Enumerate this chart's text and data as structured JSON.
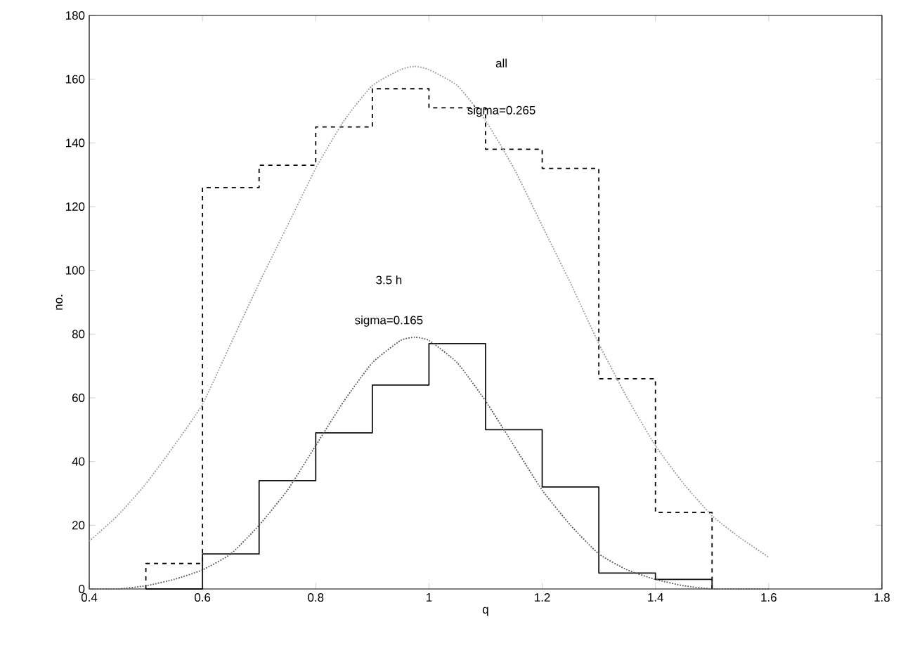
{
  "chart_data": {
    "type": "histogram",
    "xlabel": "q",
    "ylabel": "no.",
    "xlim": [
      0.4,
      1.8
    ],
    "ylim": [
      0,
      180
    ],
    "xticks": [
      0.4,
      0.6,
      0.8,
      1,
      1.2,
      1.4,
      1.6,
      1.8
    ],
    "yticks": [
      0,
      20,
      40,
      60,
      80,
      100,
      120,
      140,
      160,
      180
    ],
    "grid": false,
    "bins": [
      0.5,
      0.6,
      0.7,
      0.8,
      0.9,
      1.0,
      1.1,
      1.2,
      1.3,
      1.4,
      1.5
    ],
    "series": [
      {
        "color": "#000000",
        "line_style": "dashed",
        "values": [
          8,
          126,
          133,
          145,
          157,
          151,
          138,
          132,
          66,
          24
        ]
      },
      {
        "color": "#111111",
        "line_style": "solid",
        "values": [
          0,
          11,
          34,
          49,
          64,
          77,
          50,
          32,
          5,
          3
        ]
      },
      {
        "type": "line",
        "color": "#999999",
        "line_style": "dotted",
        "x": [
          0.4,
          0.45,
          0.5,
          0.55,
          0.6,
          0.65,
          0.7,
          0.75,
          0.8,
          0.85,
          0.9,
          0.95,
          0.975,
          1.0,
          1.05,
          1.1,
          1.15,
          1.2,
          1.25,
          1.3,
          1.35,
          1.4,
          1.45,
          1.5,
          1.55,
          1.6
        ],
        "values": [
          15,
          23,
          33,
          45,
          58,
          77,
          96,
          114,
          132,
          147,
          158,
          163,
          164,
          163,
          158,
          147,
          132,
          114,
          96,
          77,
          60,
          45,
          33,
          23,
          16,
          10
        ]
      },
      {
        "type": "line",
        "color": "#555555",
        "line_style": "dotted",
        "x": [
          0.4,
          0.45,
          0.5,
          0.55,
          0.6,
          0.65,
          0.7,
          0.75,
          0.8,
          0.85,
          0.9,
          0.95,
          0.975,
          1.0,
          1.05,
          1.1,
          1.15,
          1.2,
          1.25,
          1.3,
          1.35,
          1.4,
          1.45,
          1.5,
          1.55,
          1.6
        ],
        "values": [
          0,
          0,
          1,
          3,
          6,
          11,
          20,
          31,
          45,
          59,
          71,
          78,
          79,
          78,
          71,
          59,
          45,
          31,
          20,
          11,
          6,
          3,
          1,
          0,
          0,
          0
        ]
      }
    ],
    "annotations": [
      "all",
      "sigma=0.265",
      "3.5 h",
      "sigma=0.165"
    ]
  }
}
